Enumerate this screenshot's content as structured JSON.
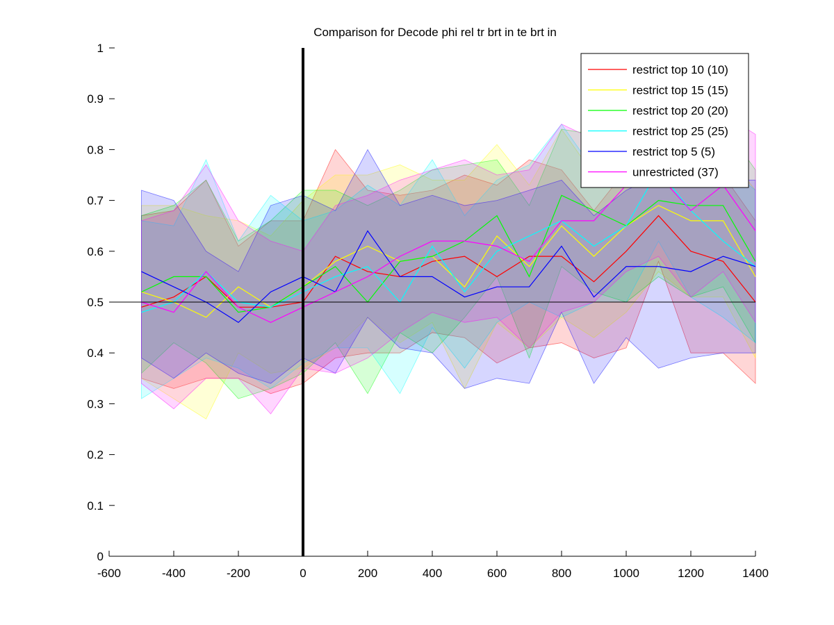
{
  "chart_data": {
    "type": "line",
    "title": "Comparison for Decode phi rel tr brt in te brt in",
    "xlabel": "",
    "ylabel": "",
    "xlim": [
      -600,
      1400
    ],
    "ylim": [
      0,
      1
    ],
    "x_ticks": [
      "-600",
      "-400",
      "-200",
      "0",
      "200",
      "400",
      "600",
      "800",
      "1000",
      "1200",
      "1400"
    ],
    "y_ticks": [
      "0",
      "0.1",
      "0.2",
      "0.3",
      "0.4",
      "0.5",
      "0.6",
      "0.7",
      "0.8",
      "0.9",
      "1"
    ],
    "grid": false,
    "legend_position": "top-right",
    "reference_lines": {
      "horizontal_y": 0.5,
      "vertical_x": 0
    },
    "x": [
      -500,
      -400,
      -300,
      -200,
      -100,
      0,
      100,
      200,
      300,
      400,
      500,
      600,
      700,
      800,
      900,
      1000,
      1100,
      1200,
      1300,
      1400
    ],
    "series": [
      {
        "name": "restrict top 10 (10)",
        "color": "#ff0000",
        "values": [
          0.49,
          0.51,
          0.55,
          0.49,
          0.49,
          0.5,
          0.59,
          0.56,
          0.55,
          0.58,
          0.59,
          0.55,
          0.59,
          0.59,
          0.54,
          0.6,
          0.67,
          0.6,
          0.58,
          0.5
        ],
        "upper": [
          0.67,
          0.68,
          0.74,
          0.61,
          0.66,
          0.66,
          0.8,
          0.72,
          0.71,
          0.72,
          0.75,
          0.73,
          0.78,
          0.76,
          0.68,
          0.76,
          0.79,
          0.76,
          0.75,
          0.66
        ],
        "lower": [
          0.35,
          0.33,
          0.35,
          0.35,
          0.32,
          0.34,
          0.39,
          0.4,
          0.4,
          0.44,
          0.43,
          0.38,
          0.41,
          0.42,
          0.39,
          0.41,
          0.58,
          0.4,
          0.4,
          0.34
        ]
      },
      {
        "name": "restrict top 15 (15)",
        "color": "#ffff00",
        "values": [
          0.52,
          0.5,
          0.47,
          0.53,
          0.49,
          0.53,
          0.58,
          0.61,
          0.58,
          0.59,
          0.53,
          0.63,
          0.57,
          0.65,
          0.59,
          0.65,
          0.69,
          0.66,
          0.66,
          0.55
        ],
        "upper": [
          0.69,
          0.69,
          0.67,
          0.66,
          0.63,
          0.7,
          0.75,
          0.75,
          0.77,
          0.74,
          0.74,
          0.81,
          0.73,
          0.84,
          0.75,
          0.8,
          0.83,
          0.82,
          0.8,
          0.72
        ],
        "lower": [
          0.35,
          0.31,
          0.27,
          0.4,
          0.36,
          0.37,
          0.41,
          0.47,
          0.42,
          0.46,
          0.33,
          0.46,
          0.41,
          0.47,
          0.43,
          0.48,
          0.56,
          0.51,
          0.51,
          0.39
        ]
      },
      {
        "name": "restrict top 20 (20)",
        "color": "#00ff00",
        "values": [
          0.52,
          0.55,
          0.55,
          0.48,
          0.49,
          0.53,
          0.57,
          0.5,
          0.58,
          0.59,
          0.62,
          0.67,
          0.55,
          0.71,
          0.68,
          0.65,
          0.7,
          0.69,
          0.69,
          0.58
        ],
        "upper": [
          0.67,
          0.69,
          0.74,
          0.62,
          0.66,
          0.72,
          0.72,
          0.69,
          0.72,
          0.76,
          0.77,
          0.78,
          0.69,
          0.84,
          0.83,
          0.8,
          0.85,
          0.85,
          0.85,
          0.76
        ],
        "lower": [
          0.36,
          0.42,
          0.38,
          0.31,
          0.33,
          0.36,
          0.42,
          0.32,
          0.44,
          0.4,
          0.47,
          0.55,
          0.39,
          0.57,
          0.52,
          0.5,
          0.55,
          0.51,
          0.53,
          0.42
        ]
      },
      {
        "name": "restrict top 25 (25)",
        "color": "#00ffff",
        "values": [
          0.48,
          0.5,
          0.56,
          0.5,
          0.49,
          0.52,
          0.55,
          0.57,
          0.5,
          0.61,
          0.52,
          0.6,
          0.63,
          0.66,
          0.61,
          0.65,
          0.76,
          0.68,
          0.62,
          0.57
        ],
        "upper": [
          0.66,
          0.65,
          0.78,
          0.62,
          0.71,
          0.66,
          0.68,
          0.73,
          0.69,
          0.78,
          0.67,
          0.74,
          0.77,
          0.85,
          0.76,
          0.79,
          0.9,
          0.82,
          0.77,
          0.72
        ],
        "lower": [
          0.31,
          0.35,
          0.39,
          0.37,
          0.33,
          0.38,
          0.41,
          0.41,
          0.32,
          0.45,
          0.37,
          0.46,
          0.5,
          0.47,
          0.5,
          0.5,
          0.62,
          0.51,
          0.47,
          0.42
        ]
      },
      {
        "name": "restrict top 5 (5)",
        "color": "#0000ff",
        "values": [
          0.56,
          0.53,
          0.5,
          0.46,
          0.52,
          0.55,
          0.52,
          0.64,
          0.55,
          0.55,
          0.51,
          0.53,
          0.53,
          0.61,
          0.51,
          0.57,
          0.57,
          0.56,
          0.59,
          0.57
        ],
        "upper": [
          0.72,
          0.7,
          0.6,
          0.56,
          0.69,
          0.71,
          0.68,
          0.8,
          0.69,
          0.71,
          0.69,
          0.7,
          0.72,
          0.74,
          0.67,
          0.72,
          0.75,
          0.73,
          0.74,
          0.74
        ],
        "lower": [
          0.39,
          0.35,
          0.4,
          0.36,
          0.34,
          0.39,
          0.36,
          0.47,
          0.41,
          0.4,
          0.33,
          0.35,
          0.34,
          0.48,
          0.34,
          0.43,
          0.37,
          0.39,
          0.4,
          0.4
        ]
      },
      {
        "name": "unrestricted (37)",
        "color": "#ff00ff",
        "values": [
          0.5,
          0.48,
          0.56,
          0.49,
          0.46,
          0.49,
          0.52,
          0.55,
          0.59,
          0.62,
          0.62,
          0.61,
          0.58,
          0.66,
          0.66,
          0.73,
          0.75,
          0.68,
          0.73,
          0.64
        ],
        "upper": [
          0.66,
          0.68,
          0.77,
          0.66,
          0.62,
          0.6,
          0.69,
          0.71,
          0.74,
          0.76,
          0.78,
          0.75,
          0.76,
          0.85,
          0.82,
          0.9,
          0.9,
          0.84,
          0.87,
          0.83
        ],
        "lower": [
          0.34,
          0.29,
          0.35,
          0.35,
          0.28,
          0.37,
          0.36,
          0.39,
          0.44,
          0.48,
          0.46,
          0.47,
          0.41,
          0.48,
          0.5,
          0.56,
          0.59,
          0.51,
          0.56,
          0.46
        ]
      }
    ]
  }
}
